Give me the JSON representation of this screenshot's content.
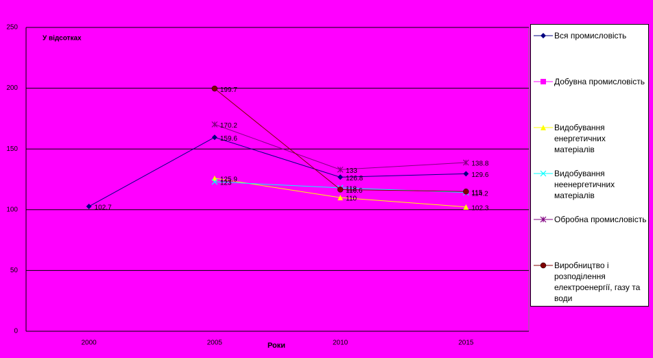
{
  "chart_data": {
    "type": "line",
    "annotation": "У відсотках",
    "x_label": "Роки",
    "categories": [
      "2000",
      "2005",
      "2010",
      "2015"
    ],
    "series": [
      {
        "name": "Вся промисловість",
        "color": "#000080",
        "marker": "diamond",
        "values": [
          102.7,
          159.6,
          126.8,
          129.6
        ]
      },
      {
        "name": "Добувна промисловість",
        "color": "#ff00ff",
        "marker": "square",
        "values": [
          null,
          null,
          null,
          null
        ]
      },
      {
        "name": "Видобування енергетичних матеріалів",
        "color": "#ffff00",
        "marker": "triangle",
        "values": [
          null,
          125.9,
          110,
          102.3
        ]
      },
      {
        "name": "Видобування неенергетичних матеріалів",
        "color": "#00ffff",
        "marker": "x",
        "values": [
          null,
          123,
          118,
          114.2
        ]
      },
      {
        "name": "Обробна промисловість",
        "color": "#800080",
        "marker": "star",
        "values": [
          null,
          170.2,
          133,
          138.8
        ]
      },
      {
        "name": "Виробництво і розподілення електроенергії, газу та води",
        "color": "#800000",
        "marker": "circle",
        "values": [
          null,
          199.7,
          116.6,
          115
        ]
      }
    ],
    "ylim": [
      0,
      250
    ],
    "yticks": [
      0,
      50,
      100,
      150,
      200,
      250
    ],
    "grid": true,
    "legend": "right"
  }
}
